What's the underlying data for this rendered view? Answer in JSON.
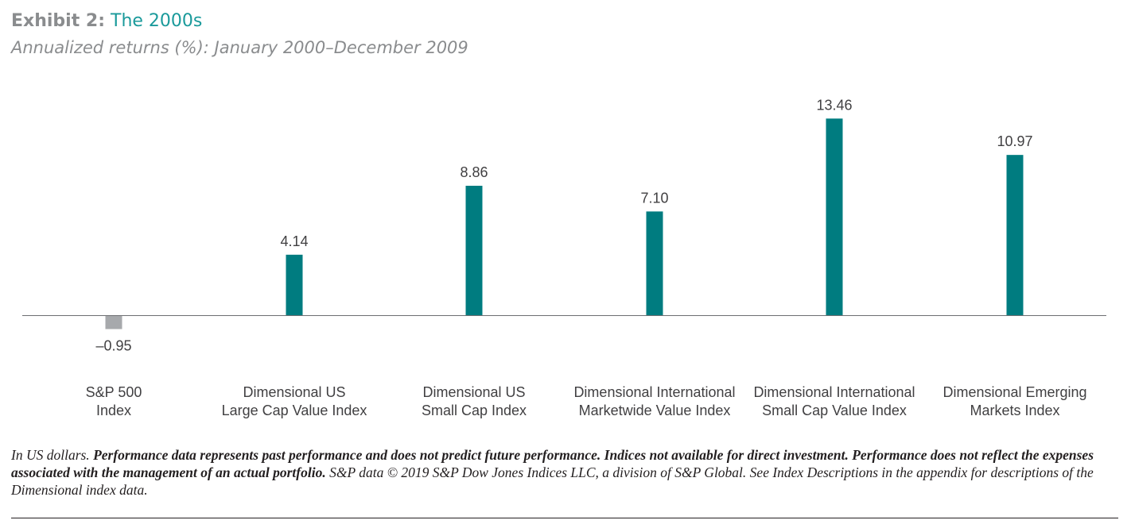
{
  "header": {
    "title_lead": "Exhibit 2:",
    "title_accent": "The 2000s",
    "subtitle": "Annualized returns (%): January 2000–December 2009"
  },
  "chart_data": {
    "type": "bar",
    "categories": [
      [
        "S&P 500",
        "Index"
      ],
      [
        "Dimensional US",
        "Large Cap Value Index"
      ],
      [
        "Dimensional US",
        "Small Cap Index"
      ],
      [
        "Dimensional International",
        "Marketwide Value Index"
      ],
      [
        "Dimensional International",
        "Small Cap Value Index"
      ],
      [
        "Dimensional Emerging",
        "Markets Index"
      ]
    ],
    "values": [
      -0.95,
      4.14,
      8.86,
      7.1,
      13.46,
      10.97
    ],
    "value_labels": [
      "–0.95",
      "4.14",
      "8.86",
      "7.10",
      "13.46",
      "10.97"
    ],
    "bar_colors": [
      "#a7a9ac",
      "#007c80",
      "#007c80",
      "#007c80",
      "#007c80",
      "#007c80"
    ],
    "title": "The 2000s",
    "xlabel": "",
    "ylabel": "",
    "grid": false
  },
  "footnote": {
    "part1": "In US dollars. ",
    "part2_bold": "Performance data represents past performance and does not predict future performance. Indices not available for direct investment. Performance does not reflect the expenses associated with the management of an actual portfolio.",
    "part3": " S&P data © 2019 S&P Dow Jones Indices LLC, a division of S&P Global. See Index Descriptions in the appendix for descriptions of the Dimensional index data."
  },
  "colors": {
    "accent": "#1a9a9b",
    "bar_primary": "#007c80",
    "bar_negative": "#a7a9ac",
    "muted_text": "#8a8c8e"
  }
}
